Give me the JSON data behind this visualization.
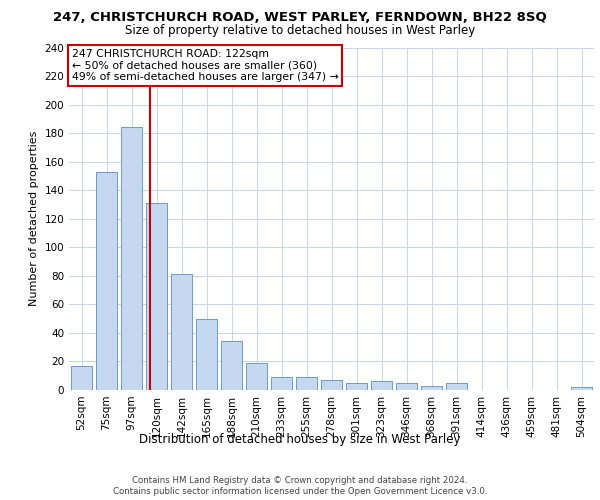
{
  "title_line1": "247, CHRISTCHURCH ROAD, WEST PARLEY, FERNDOWN, BH22 8SQ",
  "title_line2": "Size of property relative to detached houses in West Parley",
  "xlabel": "Distribution of detached houses by size in West Parley",
  "ylabel": "Number of detached properties",
  "categories": [
    "52sqm",
    "75sqm",
    "97sqm",
    "120sqm",
    "142sqm",
    "165sqm",
    "188sqm",
    "210sqm",
    "233sqm",
    "255sqm",
    "278sqm",
    "301sqm",
    "323sqm",
    "346sqm",
    "368sqm",
    "391sqm",
    "414sqm",
    "436sqm",
    "459sqm",
    "481sqm",
    "504sqm"
  ],
  "values": [
    17,
    153,
    184,
    131,
    81,
    50,
    34,
    19,
    9,
    9,
    7,
    5,
    6,
    5,
    3,
    5,
    0,
    0,
    0,
    0,
    2
  ],
  "bar_color": "#c5d8f0",
  "bar_edge_color": "#5b8fbe",
  "vline_x": 2.72,
  "vline_color": "#cc0000",
  "annotation_text": "247 CHRISTCHURCH ROAD: 122sqm\n← 50% of detached houses are smaller (360)\n49% of semi-detached houses are larger (347) →",
  "annotation_box_color": "#ffffff",
  "annotation_box_edge": "#cc0000",
  "ylim": [
    0,
    240
  ],
  "yticks": [
    0,
    20,
    40,
    60,
    80,
    100,
    120,
    140,
    160,
    180,
    200,
    220,
    240
  ],
  "footer_line1": "Contains HM Land Registry data © Crown copyright and database right 2024.",
  "footer_line2": "Contains public sector information licensed under the Open Government Licence v3.0.",
  "bg_color": "#ffffff",
  "grid_color": "#c8d4e8",
  "title1_fontsize": 9.5,
  "title2_fontsize": 8.5,
  "ylabel_fontsize": 8,
  "xlabel_fontsize": 8.5,
  "tick_fontsize": 7.5,
  "footer_fontsize": 6.2,
  "ann_fontsize": 7.8
}
